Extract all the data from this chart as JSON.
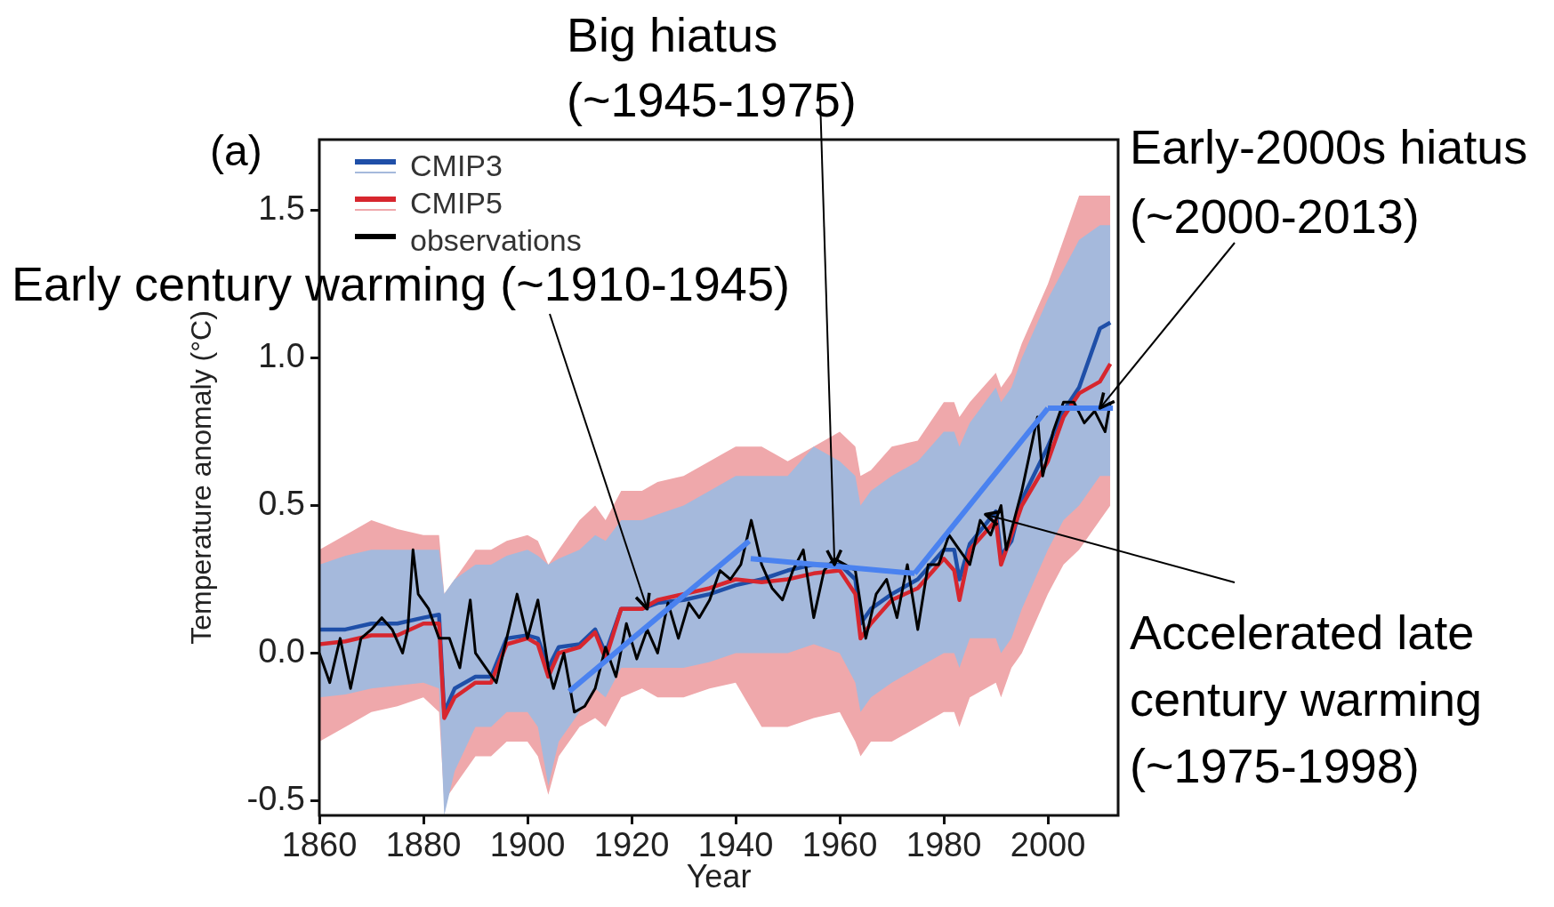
{
  "chart_data": {
    "type": "line",
    "xlabel": "Year",
    "ylabel": "Temperature anomaly (°C)",
    "xlim": [
      1860,
      2013.5
    ],
    "xticks": [
      1860,
      1880,
      1900,
      1920,
      1940,
      1960,
      1980,
      2000
    ],
    "ylim": [
      -0.55,
      1.74
    ],
    "yticks": [
      {
        "value": -0.5,
        "label": "-0.5"
      },
      {
        "value": 0,
        "label": "0.0"
      },
      {
        "value": 0.5,
        "label": "0.5"
      },
      {
        "value": 1,
        "label": "1.0"
      },
      {
        "value": 1.5,
        "label": "1.5"
      }
    ],
    "legend": "top left",
    "series": [
      {
        "name": "CMIP3",
        "color": "#1f4fa8",
        "x": [
          1860,
          1865,
          1870,
          1875,
          1880,
          1883,
          1884,
          1886,
          1890,
          1893,
          1896,
          1900,
          1902,
          1904,
          1906,
          1910,
          1913,
          1915,
          1918,
          1922,
          1925,
          1930,
          1935,
          1940,
          1945,
          1950,
          1955,
          1960,
          1963,
          1964,
          1966,
          1970,
          1975,
          1980,
          1982,
          1983,
          1985,
          1990,
          1991,
          1993,
          1995,
          2000,
          2003,
          2006,
          2010,
          2012
        ],
        "values": [
          0.08,
          0.08,
          0.1,
          0.1,
          0.12,
          0.13,
          -0.2,
          -0.12,
          -0.08,
          -0.08,
          0.05,
          0.06,
          0.05,
          -0.05,
          0.02,
          0.03,
          0.08,
          0.0,
          0.15,
          0.15,
          0.17,
          0.18,
          0.2,
          0.23,
          0.25,
          0.28,
          0.3,
          0.3,
          0.25,
          0.1,
          0.15,
          0.2,
          0.25,
          0.35,
          0.35,
          0.25,
          0.37,
          0.48,
          0.33,
          0.38,
          0.52,
          0.7,
          0.82,
          0.9,
          1.1,
          1.12
        ],
        "lower": [
          -0.15,
          -0.14,
          -0.12,
          -0.11,
          -0.1,
          -0.12,
          -0.55,
          -0.4,
          -0.25,
          -0.25,
          -0.2,
          -0.2,
          -0.25,
          -0.45,
          -0.3,
          -0.2,
          -0.12,
          -0.15,
          -0.05,
          -0.05,
          -0.05,
          -0.05,
          -0.03,
          0.0,
          0.0,
          0.0,
          0.03,
          0.0,
          -0.1,
          -0.2,
          -0.15,
          -0.1,
          -0.05,
          0.0,
          0.0,
          -0.05,
          0.05,
          0.05,
          0.0,
          0.05,
          0.15,
          0.35,
          0.45,
          0.5,
          0.6,
          0.6
        ],
        "upper": [
          0.3,
          0.33,
          0.35,
          0.35,
          0.35,
          0.35,
          0.2,
          0.25,
          0.3,
          0.3,
          0.33,
          0.35,
          0.33,
          0.3,
          0.32,
          0.35,
          0.4,
          0.38,
          0.45,
          0.45,
          0.47,
          0.5,
          0.55,
          0.6,
          0.6,
          0.6,
          0.7,
          0.65,
          0.6,
          0.5,
          0.55,
          0.6,
          0.65,
          0.75,
          0.75,
          0.7,
          0.78,
          0.9,
          0.85,
          0.9,
          1.0,
          1.2,
          1.3,
          1.4,
          1.45,
          1.45
        ]
      },
      {
        "name": "CMIP5",
        "color": "#d7262e",
        "x": [
          1860,
          1865,
          1870,
          1875,
          1880,
          1883,
          1884,
          1886,
          1890,
          1893,
          1896,
          1900,
          1902,
          1904,
          1906,
          1910,
          1913,
          1915,
          1918,
          1922,
          1925,
          1930,
          1935,
          1940,
          1945,
          1950,
          1955,
          1960,
          1963,
          1964,
          1966,
          1970,
          1975,
          1980,
          1982,
          1983,
          1985,
          1990,
          1991,
          1993,
          1995,
          2000,
          2003,
          2006,
          2010,
          2012
        ],
        "values": [
          0.03,
          0.04,
          0.06,
          0.06,
          0.1,
          0.1,
          -0.22,
          -0.15,
          -0.1,
          -0.1,
          0.03,
          0.05,
          0.03,
          -0.08,
          0.0,
          0.02,
          0.07,
          -0.02,
          0.15,
          0.15,
          0.18,
          0.2,
          0.22,
          0.25,
          0.24,
          0.25,
          0.27,
          0.28,
          0.2,
          0.05,
          0.1,
          0.18,
          0.22,
          0.32,
          0.28,
          0.18,
          0.35,
          0.45,
          0.3,
          0.4,
          0.5,
          0.65,
          0.8,
          0.88,
          0.92,
          0.98
        ],
        "lower": [
          -0.3,
          -0.25,
          -0.2,
          -0.18,
          -0.15,
          -0.2,
          -0.5,
          -0.45,
          -0.35,
          -0.35,
          -0.3,
          -0.3,
          -0.35,
          -0.48,
          -0.35,
          -0.25,
          -0.22,
          -0.25,
          -0.15,
          -0.12,
          -0.15,
          -0.15,
          -0.12,
          -0.1,
          -0.25,
          -0.25,
          -0.22,
          -0.2,
          -0.3,
          -0.35,
          -0.3,
          -0.3,
          -0.25,
          -0.2,
          -0.2,
          -0.25,
          -0.15,
          -0.1,
          -0.15,
          -0.05,
          0.0,
          0.2,
          0.3,
          0.35,
          0.45,
          0.5
        ],
        "upper": [
          0.35,
          0.4,
          0.45,
          0.42,
          0.4,
          0.4,
          0.2,
          0.25,
          0.35,
          0.35,
          0.38,
          0.4,
          0.38,
          0.3,
          0.35,
          0.45,
          0.5,
          0.45,
          0.55,
          0.55,
          0.58,
          0.6,
          0.65,
          0.7,
          0.7,
          0.65,
          0.7,
          0.75,
          0.7,
          0.6,
          0.62,
          0.7,
          0.72,
          0.85,
          0.85,
          0.8,
          0.85,
          0.95,
          0.9,
          0.95,
          1.05,
          1.25,
          1.4,
          1.55,
          1.55,
          1.55
        ]
      },
      {
        "name": "observations",
        "color": "#000000",
        "x": [
          1860,
          1862,
          1864,
          1866,
          1868,
          1870,
          1872,
          1874,
          1876,
          1877,
          1878,
          1879,
          1881,
          1883,
          1885,
          1887,
          1889,
          1890,
          1892,
          1894,
          1896,
          1898,
          1900,
          1902,
          1904,
          1905,
          1907,
          1909,
          1911,
          1913,
          1915,
          1917,
          1919,
          1921,
          1923,
          1925,
          1927,
          1929,
          1931,
          1933,
          1935,
          1937,
          1939,
          1941,
          1943,
          1945,
          1947,
          1949,
          1951,
          1953,
          1955,
          1957,
          1959,
          1961,
          1963,
          1965,
          1967,
          1969,
          1971,
          1973,
          1975,
          1977,
          1979,
          1981,
          1983,
          1985,
          1987,
          1989,
          1991,
          1992,
          1995,
          1998,
          1999,
          2001,
          2003,
          2005,
          2007,
          2009,
          2011,
          2012
        ],
        "values": [
          0.0,
          -0.1,
          0.05,
          -0.12,
          0.05,
          0.08,
          0.12,
          0.08,
          0.0,
          0.08,
          0.35,
          0.2,
          0.15,
          0.05,
          0.05,
          -0.05,
          0.18,
          0.0,
          -0.05,
          -0.1,
          0.05,
          0.2,
          0.05,
          0.18,
          -0.05,
          -0.12,
          0.0,
          -0.2,
          -0.18,
          -0.12,
          0.02,
          -0.08,
          0.1,
          -0.02,
          0.08,
          0.0,
          0.17,
          0.05,
          0.17,
          0.12,
          0.18,
          0.28,
          0.25,
          0.3,
          0.45,
          0.3,
          0.22,
          0.18,
          0.28,
          0.35,
          0.12,
          0.28,
          0.32,
          0.3,
          0.28,
          0.05,
          0.2,
          0.25,
          0.12,
          0.3,
          0.08,
          0.3,
          0.3,
          0.4,
          0.35,
          0.3,
          0.45,
          0.4,
          0.5,
          0.35,
          0.55,
          0.8,
          0.6,
          0.75,
          0.85,
          0.85,
          0.78,
          0.82,
          0.75,
          0.85
        ]
      },
      {
        "type": "line",
        "color": "#4a82f0",
        "x": [
          1908,
          1942.6
        ],
        "values": [
          -0.13,
          0.38
        ]
      },
      {
        "type": "line",
        "color": "#4a82f0",
        "x": [
          1942.9,
          1974.4
        ],
        "values": [
          0.32,
          0.27
        ]
      },
      {
        "type": "line",
        "color": "#4a82f0",
        "x": [
          1974.4,
          2000
        ],
        "values": [
          0.27,
          0.83
        ]
      },
      {
        "type": "line",
        "color": "#4a82f0",
        "x": [
          2000,
          2012.5
        ],
        "values": [
          0.83,
          0.83
        ]
      }
    ],
    "annotations": [
      "(a)",
      {
        "text": "Early century warming (~1910-1945)",
        "x": 1923,
        "y": 0.15
      },
      {
        "text": "Big hiatus (~1945-1975)",
        "x": 1959,
        "y": 0.3
      },
      {
        "text": "Early-2000s hiatus (~2000-2013)",
        "x": 2010,
        "y": 0.83
      },
      {
        "text": "Accelerated late century warming (~1975-1998)",
        "x": 1988,
        "y": 0.47
      }
    ]
  }
}
